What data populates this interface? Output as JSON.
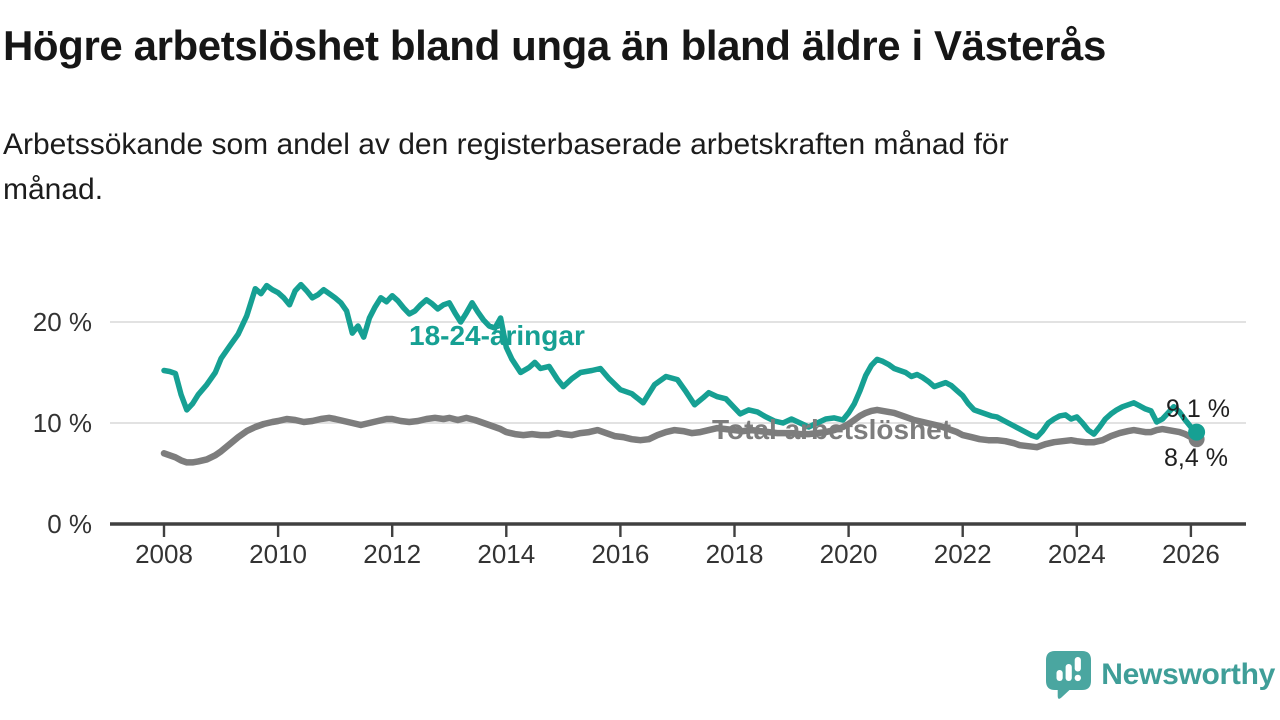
{
  "header": {
    "title": "Högre arbetslöshet bland unga än bland äldre i Västerås",
    "subtitle_lines": [
      "Arbetssökande som andel av den registerbaserade arbetskraften månad för",
      "månad."
    ]
  },
  "branding": {
    "logo_text": "Newsworthy",
    "logo_color": "#3f9e98",
    "logo_icon": "speech-bubble-bar-chart"
  },
  "colors": {
    "young_series": "#16a093",
    "total_series": "#7d7d7d",
    "gridline": "#d8d8d8",
    "axis": "#404040",
    "axis_text": "#333333",
    "value_label_text": "#1f1f1f"
  },
  "chart_data": {
    "type": "line",
    "title": "Högre arbetslöshet bland unga än bland äldre i Västerås",
    "subtitle": "Arbetssökande som andel av den registerbaserade arbetskraften månad för månad.",
    "unit": "%",
    "grid": "horizontal",
    "legend_position": "inline-labels",
    "xlim": [
      2008,
      2027
    ],
    "ylim": [
      0,
      25
    ],
    "x_ticks": [
      2008,
      2010,
      2012,
      2014,
      2016,
      2018,
      2020,
      2022,
      2024,
      2026
    ],
    "y_ticks": [
      {
        "value": 0,
        "label": "0 %"
      },
      {
        "value": 10,
        "label": "10 %"
      },
      {
        "value": 20,
        "label": "20 %"
      }
    ],
    "series": [
      {
        "name": "18-24-åringar",
        "color": "#16a093",
        "end_value": 9.1,
        "end_value_label": "9,1 %",
        "points": [
          [
            2008.0,
            15.2
          ],
          [
            2008.1,
            15.1
          ],
          [
            2008.2,
            14.9
          ],
          [
            2008.3,
            12.8
          ],
          [
            2008.4,
            11.3
          ],
          [
            2008.5,
            11.9
          ],
          [
            2008.6,
            12.8
          ],
          [
            2008.75,
            13.8
          ],
          [
            2008.9,
            15.0
          ],
          [
            2009.0,
            16.4
          ],
          [
            2009.15,
            17.6
          ],
          [
            2009.3,
            18.8
          ],
          [
            2009.45,
            20.6
          ],
          [
            2009.6,
            23.3
          ],
          [
            2009.7,
            22.8
          ],
          [
            2009.8,
            23.6
          ],
          [
            2009.9,
            23.2
          ],
          [
            2010.0,
            22.9
          ],
          [
            2010.1,
            22.4
          ],
          [
            2010.2,
            21.7
          ],
          [
            2010.3,
            23.1
          ],
          [
            2010.4,
            23.7
          ],
          [
            2010.5,
            23.1
          ],
          [
            2010.6,
            22.4
          ],
          [
            2010.7,
            22.7
          ],
          [
            2010.8,
            23.2
          ],
          [
            2010.9,
            22.8
          ],
          [
            2011.0,
            22.4
          ],
          [
            2011.1,
            21.9
          ],
          [
            2011.2,
            21.1
          ],
          [
            2011.3,
            18.9
          ],
          [
            2011.4,
            19.6
          ],
          [
            2011.5,
            18.5
          ],
          [
            2011.6,
            20.4
          ],
          [
            2011.7,
            21.5
          ],
          [
            2011.8,
            22.4
          ],
          [
            2011.9,
            22.0
          ],
          [
            2012.0,
            22.6
          ],
          [
            2012.1,
            22.1
          ],
          [
            2012.2,
            21.4
          ],
          [
            2012.3,
            20.8
          ],
          [
            2012.4,
            21.1
          ],
          [
            2012.5,
            21.7
          ],
          [
            2012.6,
            22.2
          ],
          [
            2012.7,
            21.8
          ],
          [
            2012.8,
            21.3
          ],
          [
            2012.9,
            21.7
          ],
          [
            2013.0,
            21.9
          ],
          [
            2013.1,
            20.9
          ],
          [
            2013.2,
            20.0
          ],
          [
            2013.3,
            20.9
          ],
          [
            2013.4,
            21.9
          ],
          [
            2013.5,
            21.0
          ],
          [
            2013.6,
            20.2
          ],
          [
            2013.7,
            19.6
          ],
          [
            2013.8,
            19.4
          ],
          [
            2013.9,
            20.4
          ],
          [
            2014.0,
            17.5
          ],
          [
            2014.1,
            16.3
          ],
          [
            2014.25,
            15.0
          ],
          [
            2014.4,
            15.5
          ],
          [
            2014.5,
            16.0
          ],
          [
            2014.6,
            15.4
          ],
          [
            2014.75,
            15.6
          ],
          [
            2014.9,
            14.3
          ],
          [
            2015.0,
            13.6
          ],
          [
            2015.15,
            14.4
          ],
          [
            2015.3,
            15.0
          ],
          [
            2015.5,
            15.2
          ],
          [
            2015.65,
            15.4
          ],
          [
            2015.8,
            14.4
          ],
          [
            2016.0,
            13.3
          ],
          [
            2016.2,
            12.9
          ],
          [
            2016.4,
            12.0
          ],
          [
            2016.6,
            13.8
          ],
          [
            2016.8,
            14.6
          ],
          [
            2017.0,
            14.3
          ],
          [
            2017.15,
            13.1
          ],
          [
            2017.3,
            11.8
          ],
          [
            2017.45,
            12.5
          ],
          [
            2017.55,
            13.0
          ],
          [
            2017.7,
            12.6
          ],
          [
            2017.85,
            12.4
          ],
          [
            2018.0,
            11.5
          ],
          [
            2018.1,
            10.9
          ],
          [
            2018.25,
            11.3
          ],
          [
            2018.4,
            11.1
          ],
          [
            2018.55,
            10.6
          ],
          [
            2018.7,
            10.2
          ],
          [
            2018.85,
            10.0
          ],
          [
            2019.0,
            10.4
          ],
          [
            2019.15,
            10.0
          ],
          [
            2019.3,
            9.6
          ],
          [
            2019.45,
            10.0
          ],
          [
            2019.6,
            10.4
          ],
          [
            2019.75,
            10.5
          ],
          [
            2019.9,
            10.3
          ],
          [
            2020.0,
            11.0
          ],
          [
            2020.1,
            11.9
          ],
          [
            2020.2,
            13.2
          ],
          [
            2020.3,
            14.7
          ],
          [
            2020.4,
            15.7
          ],
          [
            2020.5,
            16.3
          ],
          [
            2020.6,
            16.1
          ],
          [
            2020.7,
            15.8
          ],
          [
            2020.8,
            15.4
          ],
          [
            2020.9,
            15.2
          ],
          [
            2021.0,
            15.0
          ],
          [
            2021.1,
            14.6
          ],
          [
            2021.2,
            14.8
          ],
          [
            2021.3,
            14.5
          ],
          [
            2021.4,
            14.1
          ],
          [
            2021.5,
            13.6
          ],
          [
            2021.6,
            13.8
          ],
          [
            2021.7,
            14.0
          ],
          [
            2021.8,
            13.7
          ],
          [
            2021.9,
            13.2
          ],
          [
            2022.0,
            12.7
          ],
          [
            2022.1,
            11.9
          ],
          [
            2022.2,
            11.3
          ],
          [
            2022.3,
            11.1
          ],
          [
            2022.4,
            10.9
          ],
          [
            2022.5,
            10.7
          ],
          [
            2022.6,
            10.6
          ],
          [
            2022.7,
            10.3
          ],
          [
            2022.8,
            10.0
          ],
          [
            2022.9,
            9.7
          ],
          [
            2023.0,
            9.4
          ],
          [
            2023.1,
            9.1
          ],
          [
            2023.2,
            8.8
          ],
          [
            2023.3,
            8.6
          ],
          [
            2023.4,
            9.2
          ],
          [
            2023.5,
            10.0
          ],
          [
            2023.6,
            10.4
          ],
          [
            2023.7,
            10.7
          ],
          [
            2023.8,
            10.8
          ],
          [
            2023.9,
            10.4
          ],
          [
            2024.0,
            10.6
          ],
          [
            2024.1,
            10.0
          ],
          [
            2024.2,
            9.3
          ],
          [
            2024.3,
            8.9
          ],
          [
            2024.4,
            9.6
          ],
          [
            2024.5,
            10.4
          ],
          [
            2024.6,
            10.9
          ],
          [
            2024.7,
            11.3
          ],
          [
            2024.8,
            11.6
          ],
          [
            2024.9,
            11.8
          ],
          [
            2025.0,
            12.0
          ],
          [
            2025.1,
            11.7
          ],
          [
            2025.2,
            11.4
          ],
          [
            2025.3,
            11.2
          ],
          [
            2025.4,
            10.1
          ],
          [
            2025.5,
            10.4
          ],
          [
            2025.6,
            11.0
          ],
          [
            2025.7,
            11.6
          ],
          [
            2025.8,
            11.1
          ],
          [
            2025.9,
            10.3
          ],
          [
            2026.0,
            9.6
          ],
          [
            2026.1,
            9.1
          ]
        ]
      },
      {
        "name": "Total arbetslöshet",
        "color": "#7d7d7d",
        "end_value": 8.4,
        "end_value_label": "8,4 %",
        "points": [
          [
            2008.0,
            7.0
          ],
          [
            2008.1,
            6.8
          ],
          [
            2008.2,
            6.6
          ],
          [
            2008.3,
            6.3
          ],
          [
            2008.4,
            6.1
          ],
          [
            2008.5,
            6.1
          ],
          [
            2008.6,
            6.2
          ],
          [
            2008.75,
            6.4
          ],
          [
            2008.9,
            6.8
          ],
          [
            2009.0,
            7.2
          ],
          [
            2009.15,
            7.9
          ],
          [
            2009.3,
            8.6
          ],
          [
            2009.45,
            9.2
          ],
          [
            2009.6,
            9.6
          ],
          [
            2009.75,
            9.9
          ],
          [
            2009.9,
            10.1
          ],
          [
            2010.0,
            10.2
          ],
          [
            2010.15,
            10.4
          ],
          [
            2010.3,
            10.3
          ],
          [
            2010.45,
            10.1
          ],
          [
            2010.6,
            10.2
          ],
          [
            2010.75,
            10.4
          ],
          [
            2010.9,
            10.5
          ],
          [
            2011.0,
            10.4
          ],
          [
            2011.15,
            10.2
          ],
          [
            2011.3,
            10.0
          ],
          [
            2011.45,
            9.8
          ],
          [
            2011.6,
            10.0
          ],
          [
            2011.75,
            10.2
          ],
          [
            2011.9,
            10.4
          ],
          [
            2012.0,
            10.4
          ],
          [
            2012.15,
            10.2
          ],
          [
            2012.3,
            10.1
          ],
          [
            2012.45,
            10.2
          ],
          [
            2012.6,
            10.4
          ],
          [
            2012.75,
            10.5
          ],
          [
            2012.9,
            10.4
          ],
          [
            2013.0,
            10.5
          ],
          [
            2013.15,
            10.3
          ],
          [
            2013.3,
            10.5
          ],
          [
            2013.45,
            10.3
          ],
          [
            2013.6,
            10.0
          ],
          [
            2013.75,
            9.7
          ],
          [
            2013.9,
            9.4
          ],
          [
            2014.0,
            9.1
          ],
          [
            2014.15,
            8.9
          ],
          [
            2014.3,
            8.8
          ],
          [
            2014.45,
            8.9
          ],
          [
            2014.6,
            8.8
          ],
          [
            2014.75,
            8.8
          ],
          [
            2014.9,
            9.0
          ],
          [
            2015.0,
            8.9
          ],
          [
            2015.15,
            8.8
          ],
          [
            2015.3,
            9.0
          ],
          [
            2015.45,
            9.1
          ],
          [
            2015.6,
            9.3
          ],
          [
            2015.75,
            9.0
          ],
          [
            2015.9,
            8.7
          ],
          [
            2016.05,
            8.6
          ],
          [
            2016.2,
            8.4
          ],
          [
            2016.35,
            8.3
          ],
          [
            2016.5,
            8.4
          ],
          [
            2016.65,
            8.8
          ],
          [
            2016.8,
            9.1
          ],
          [
            2016.95,
            9.3
          ],
          [
            2017.1,
            9.2
          ],
          [
            2017.25,
            9.0
          ],
          [
            2017.4,
            9.1
          ],
          [
            2017.55,
            9.3
          ],
          [
            2017.7,
            9.5
          ],
          [
            2017.85,
            9.4
          ],
          [
            2018.0,
            9.3
          ],
          [
            2018.15,
            9.2
          ],
          [
            2018.3,
            9.3
          ],
          [
            2018.45,
            9.2
          ],
          [
            2018.6,
            9.1
          ],
          [
            2018.75,
            9.0
          ],
          [
            2018.9,
            9.0
          ],
          [
            2019.0,
            9.0
          ],
          [
            2019.15,
            8.9
          ],
          [
            2019.3,
            8.9
          ],
          [
            2019.45,
            9.0
          ],
          [
            2019.6,
            9.1
          ],
          [
            2019.75,
            9.3
          ],
          [
            2019.9,
            9.6
          ],
          [
            2020.0,
            9.9
          ],
          [
            2020.1,
            10.3
          ],
          [
            2020.2,
            10.7
          ],
          [
            2020.3,
            11.0
          ],
          [
            2020.4,
            11.2
          ],
          [
            2020.5,
            11.3
          ],
          [
            2020.6,
            11.2
          ],
          [
            2020.7,
            11.1
          ],
          [
            2020.8,
            11.0
          ],
          [
            2020.9,
            10.8
          ],
          [
            2021.0,
            10.6
          ],
          [
            2021.15,
            10.3
          ],
          [
            2021.3,
            10.1
          ],
          [
            2021.45,
            9.9
          ],
          [
            2021.6,
            9.7
          ],
          [
            2021.75,
            9.4
          ],
          [
            2021.9,
            9.1
          ],
          [
            2022.0,
            8.8
          ],
          [
            2022.15,
            8.6
          ],
          [
            2022.3,
            8.4
          ],
          [
            2022.45,
            8.3
          ],
          [
            2022.6,
            8.3
          ],
          [
            2022.75,
            8.2
          ],
          [
            2022.9,
            8.0
          ],
          [
            2023.0,
            7.8
          ],
          [
            2023.15,
            7.7
          ],
          [
            2023.3,
            7.6
          ],
          [
            2023.45,
            7.9
          ],
          [
            2023.6,
            8.1
          ],
          [
            2023.75,
            8.2
          ],
          [
            2023.9,
            8.3
          ],
          [
            2024.0,
            8.2
          ],
          [
            2024.15,
            8.1
          ],
          [
            2024.3,
            8.1
          ],
          [
            2024.45,
            8.3
          ],
          [
            2024.6,
            8.7
          ],
          [
            2024.75,
            9.0
          ],
          [
            2024.9,
            9.2
          ],
          [
            2025.0,
            9.3
          ],
          [
            2025.1,
            9.2
          ],
          [
            2025.2,
            9.1
          ],
          [
            2025.3,
            9.1
          ],
          [
            2025.4,
            9.3
          ],
          [
            2025.5,
            9.4
          ],
          [
            2025.6,
            9.3
          ],
          [
            2025.7,
            9.2
          ],
          [
            2025.8,
            9.1
          ],
          [
            2025.9,
            8.9
          ],
          [
            2026.0,
            8.6
          ],
          [
            2026.1,
            8.4
          ]
        ]
      }
    ]
  }
}
